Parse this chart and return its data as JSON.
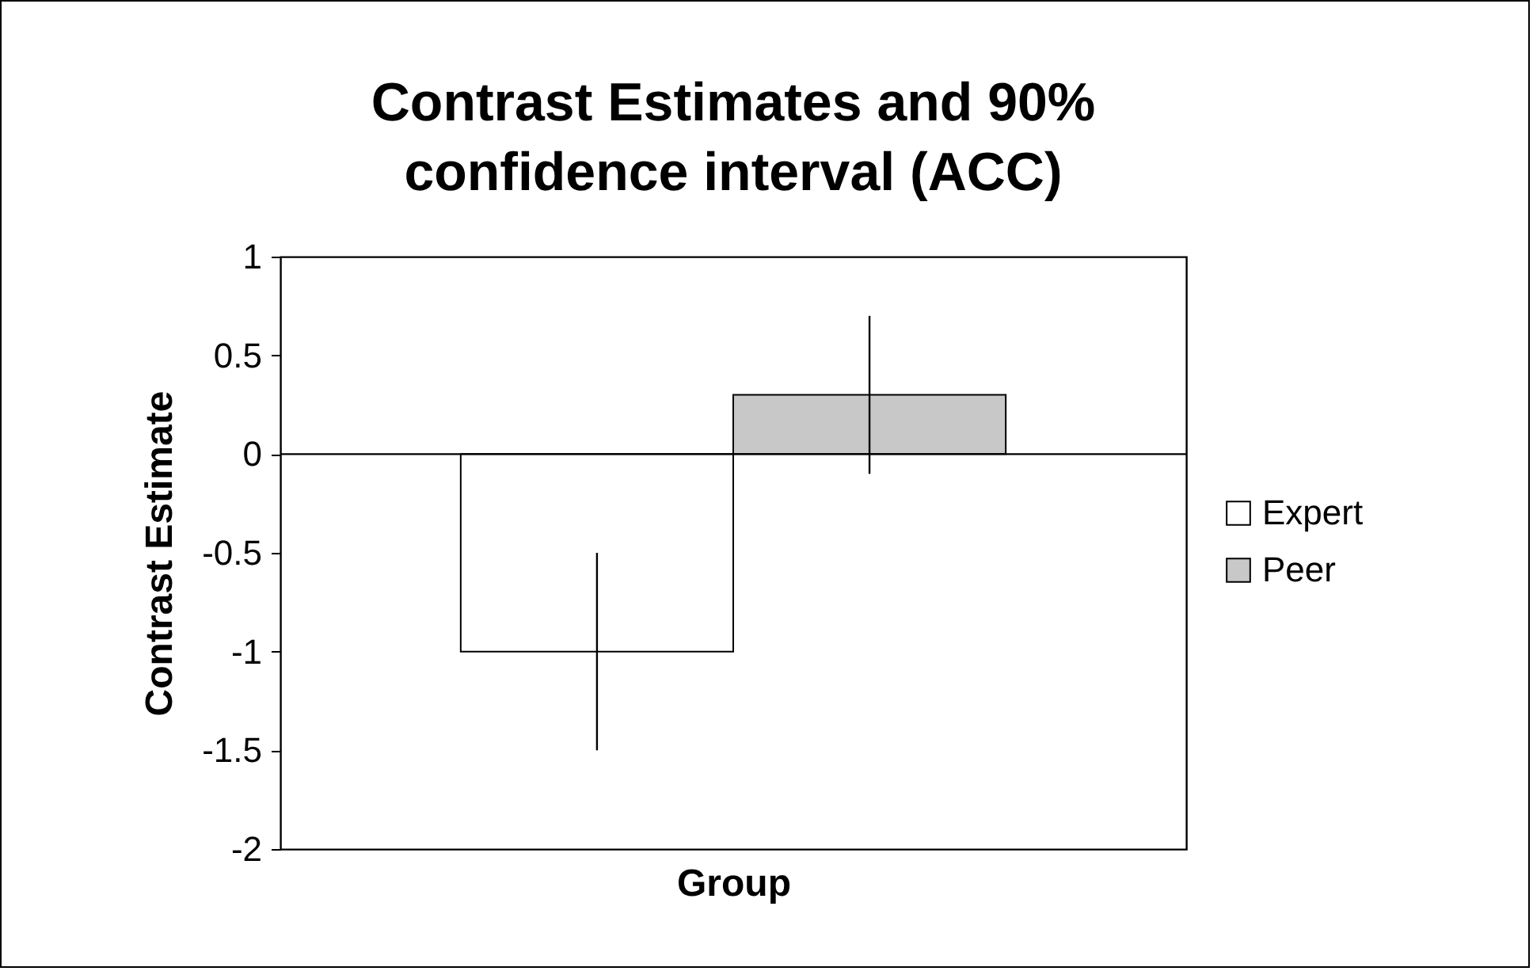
{
  "chart_data": {
    "type": "bar",
    "title": "Contrast Estimates and 90% confidence interval (ACC)",
    "xlabel": "Group",
    "ylabel": "Contrast Estimate",
    "categories": [
      null
    ],
    "series": [
      {
        "name": "Expert",
        "color": "#ffffff",
        "values": [
          -1
        ],
        "errors": [
          [
            -1.5,
            -0.5
          ]
        ]
      },
      {
        "name": "Peer",
        "color": "#c8c8c8",
        "values": [
          0.3
        ],
        "errors": [
          [
            -0.1,
            0.7
          ]
        ]
      }
    ],
    "ylim": [
      -2,
      1
    ],
    "yticks": [
      -2,
      -1.5,
      -1,
      -0.5,
      0,
      0.5,
      1
    ],
    "ref_lines": [
      {
        "axis": "y",
        "value": 0,
        "color": "#000000"
      }
    ],
    "legend": "right"
  }
}
